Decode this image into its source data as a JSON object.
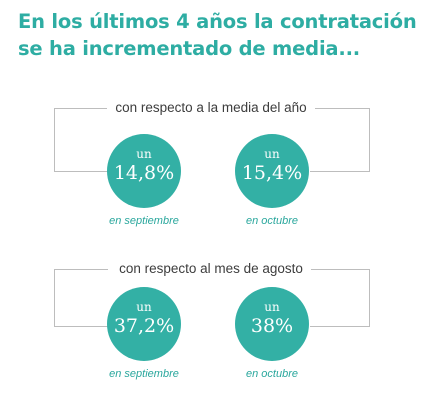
{
  "title": {
    "line1": "En los últimos 4 años la contratación",
    "line2": "se ha incrementado de media..."
  },
  "sections": [
    {
      "label": "con respecto a la media del año",
      "stats": [
        {
          "prefix": "un",
          "value": "14,8%",
          "caption": "en septiembre"
        },
        {
          "prefix": "un",
          "value": "15,4%",
          "caption": "en octubre"
        }
      ]
    },
    {
      "label": "con respecto al mes de agosto",
      "stats": [
        {
          "prefix": "un",
          "value": "37,2%",
          "caption": "en septiembre"
        },
        {
          "prefix": "un",
          "value": "38%",
          "caption": "en octubre"
        }
      ]
    }
  ],
  "colors": {
    "accent": "#33b0a5",
    "title": "#2eada3",
    "bracket": "#bdbdbd",
    "text": "#3d3d3d"
  }
}
